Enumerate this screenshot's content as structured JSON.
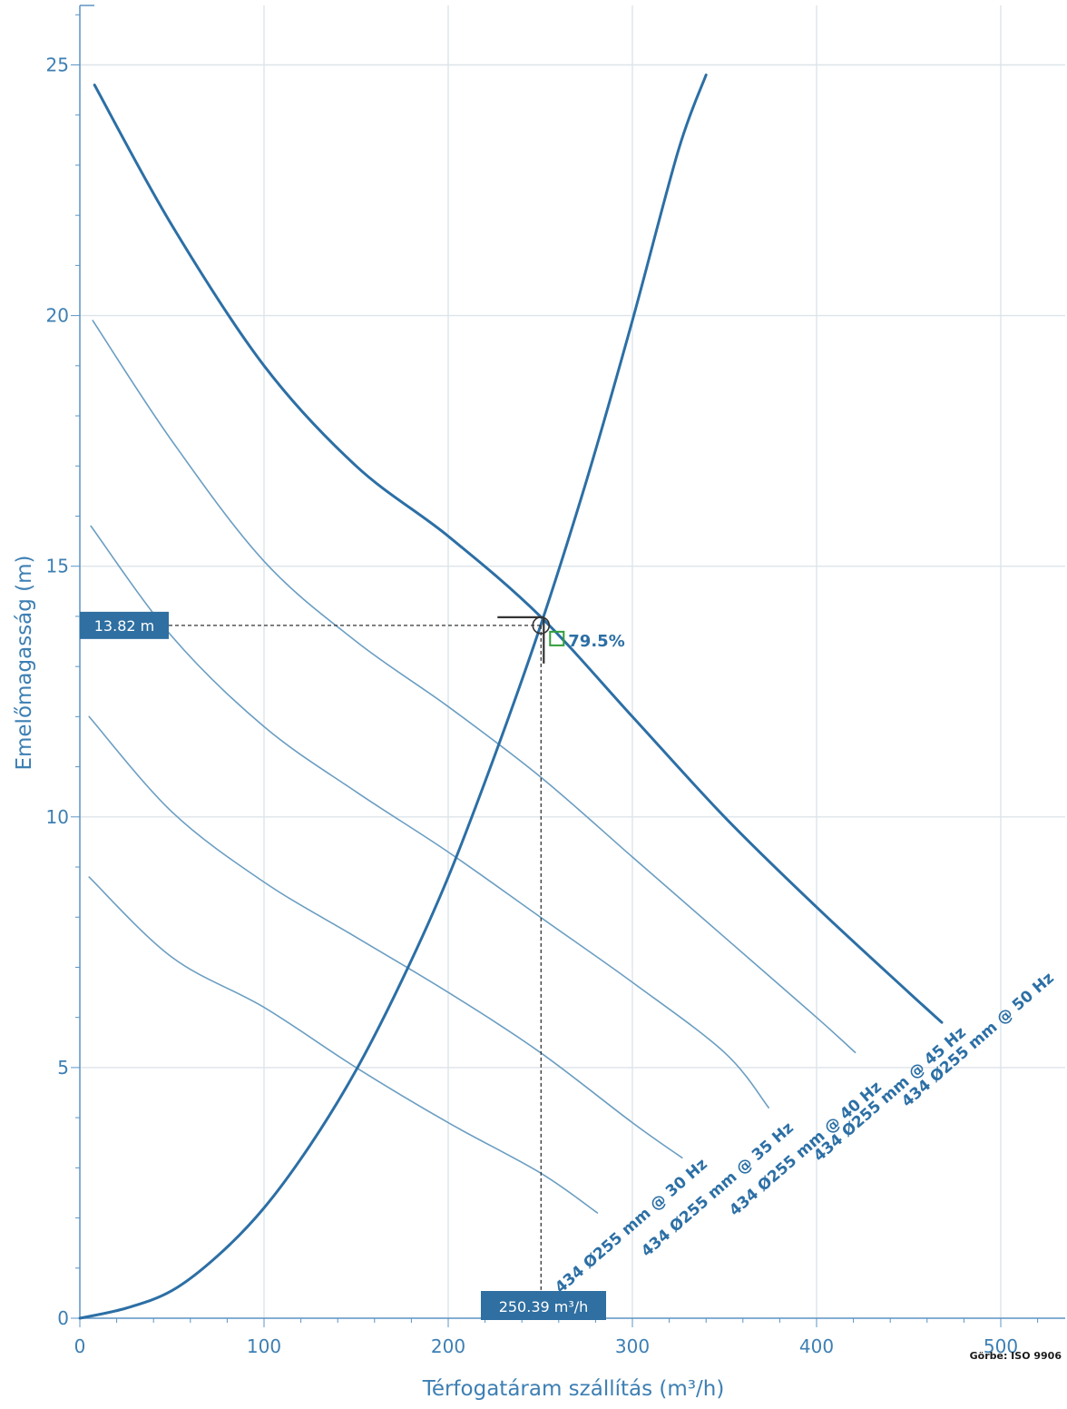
{
  "colors": {
    "axis": "#5b94c4",
    "grid": "#dde4ea",
    "main_curve": "#2c6fa5",
    "speed_curve": "#6b9ec2",
    "label_box": "#2f6fa1",
    "efficiency_marker": "#2e9e3a",
    "crosshair": "#333333"
  },
  "chart_data": {
    "type": "line",
    "xlabel": "Térfogatáram szállítás (m³/h)",
    "ylabel": "Emelőmagasság (m)",
    "xlim": [
      0,
      535
    ],
    "ylim": [
      0,
      26.2
    ],
    "xticks": [
      0,
      100,
      200,
      300,
      400,
      500
    ],
    "yticks": [
      0,
      5,
      10,
      15,
      20,
      25
    ],
    "grid": true,
    "source_note": "Görbe: ISO 9906",
    "series": [
      {
        "name": "434 Ø255 mm @ 50 Hz",
        "role": "pump",
        "x": [
          8,
          50,
          100,
          150,
          200,
          250,
          300,
          350,
          400,
          450,
          468
        ],
        "y": [
          24.6,
          21.8,
          19.0,
          17.0,
          15.6,
          14.0,
          12.0,
          10.0,
          8.2,
          6.5,
          5.9
        ]
      },
      {
        "name": "434 Ø255 mm @ 45 Hz",
        "role": "pump",
        "x": [
          7,
          50,
          100,
          150,
          200,
          250,
          300,
          350,
          400,
          421
        ],
        "y": [
          19.9,
          17.5,
          15.1,
          13.5,
          12.2,
          10.8,
          9.2,
          7.6,
          6.0,
          5.3
        ]
      },
      {
        "name": "434 Ø255 mm @ 40 Hz",
        "role": "pump",
        "x": [
          6,
          50,
          100,
          150,
          200,
          250,
          300,
          350,
          374
        ],
        "y": [
          15.8,
          13.6,
          11.8,
          10.5,
          9.3,
          8.0,
          6.7,
          5.3,
          4.2
        ]
      },
      {
        "name": "434 Ø255 mm @ 35 Hz",
        "role": "pump",
        "x": [
          5,
          50,
          100,
          150,
          200,
          250,
          300,
          327
        ],
        "y": [
          12.0,
          10.1,
          8.7,
          7.6,
          6.5,
          5.3,
          3.9,
          3.2
        ]
      },
      {
        "name": "434 Ø255 mm @ 30 Hz",
        "role": "pump",
        "x": [
          5,
          50,
          100,
          150,
          200,
          250,
          281
        ],
        "y": [
          8.8,
          7.2,
          6.2,
          5.0,
          3.9,
          2.9,
          2.1
        ]
      },
      {
        "name": "",
        "role": "system",
        "x": [
          0,
          25,
          50,
          75,
          100,
          125,
          150,
          175,
          200,
          225,
          250,
          275,
          300,
          325,
          340
        ],
        "y": [
          0,
          0.2,
          0.55,
          1.25,
          2.2,
          3.45,
          4.95,
          6.75,
          8.8,
          11.2,
          13.8,
          16.7,
          19.9,
          23.3,
          24.8
        ]
      }
    ],
    "operating_point": {
      "x": 250.39,
      "y": 13.82,
      "x_label": "250.39 m³/h",
      "y_label": "13.82 m",
      "efficiency": 79.5,
      "efficiency_label": "79.5%"
    }
  }
}
